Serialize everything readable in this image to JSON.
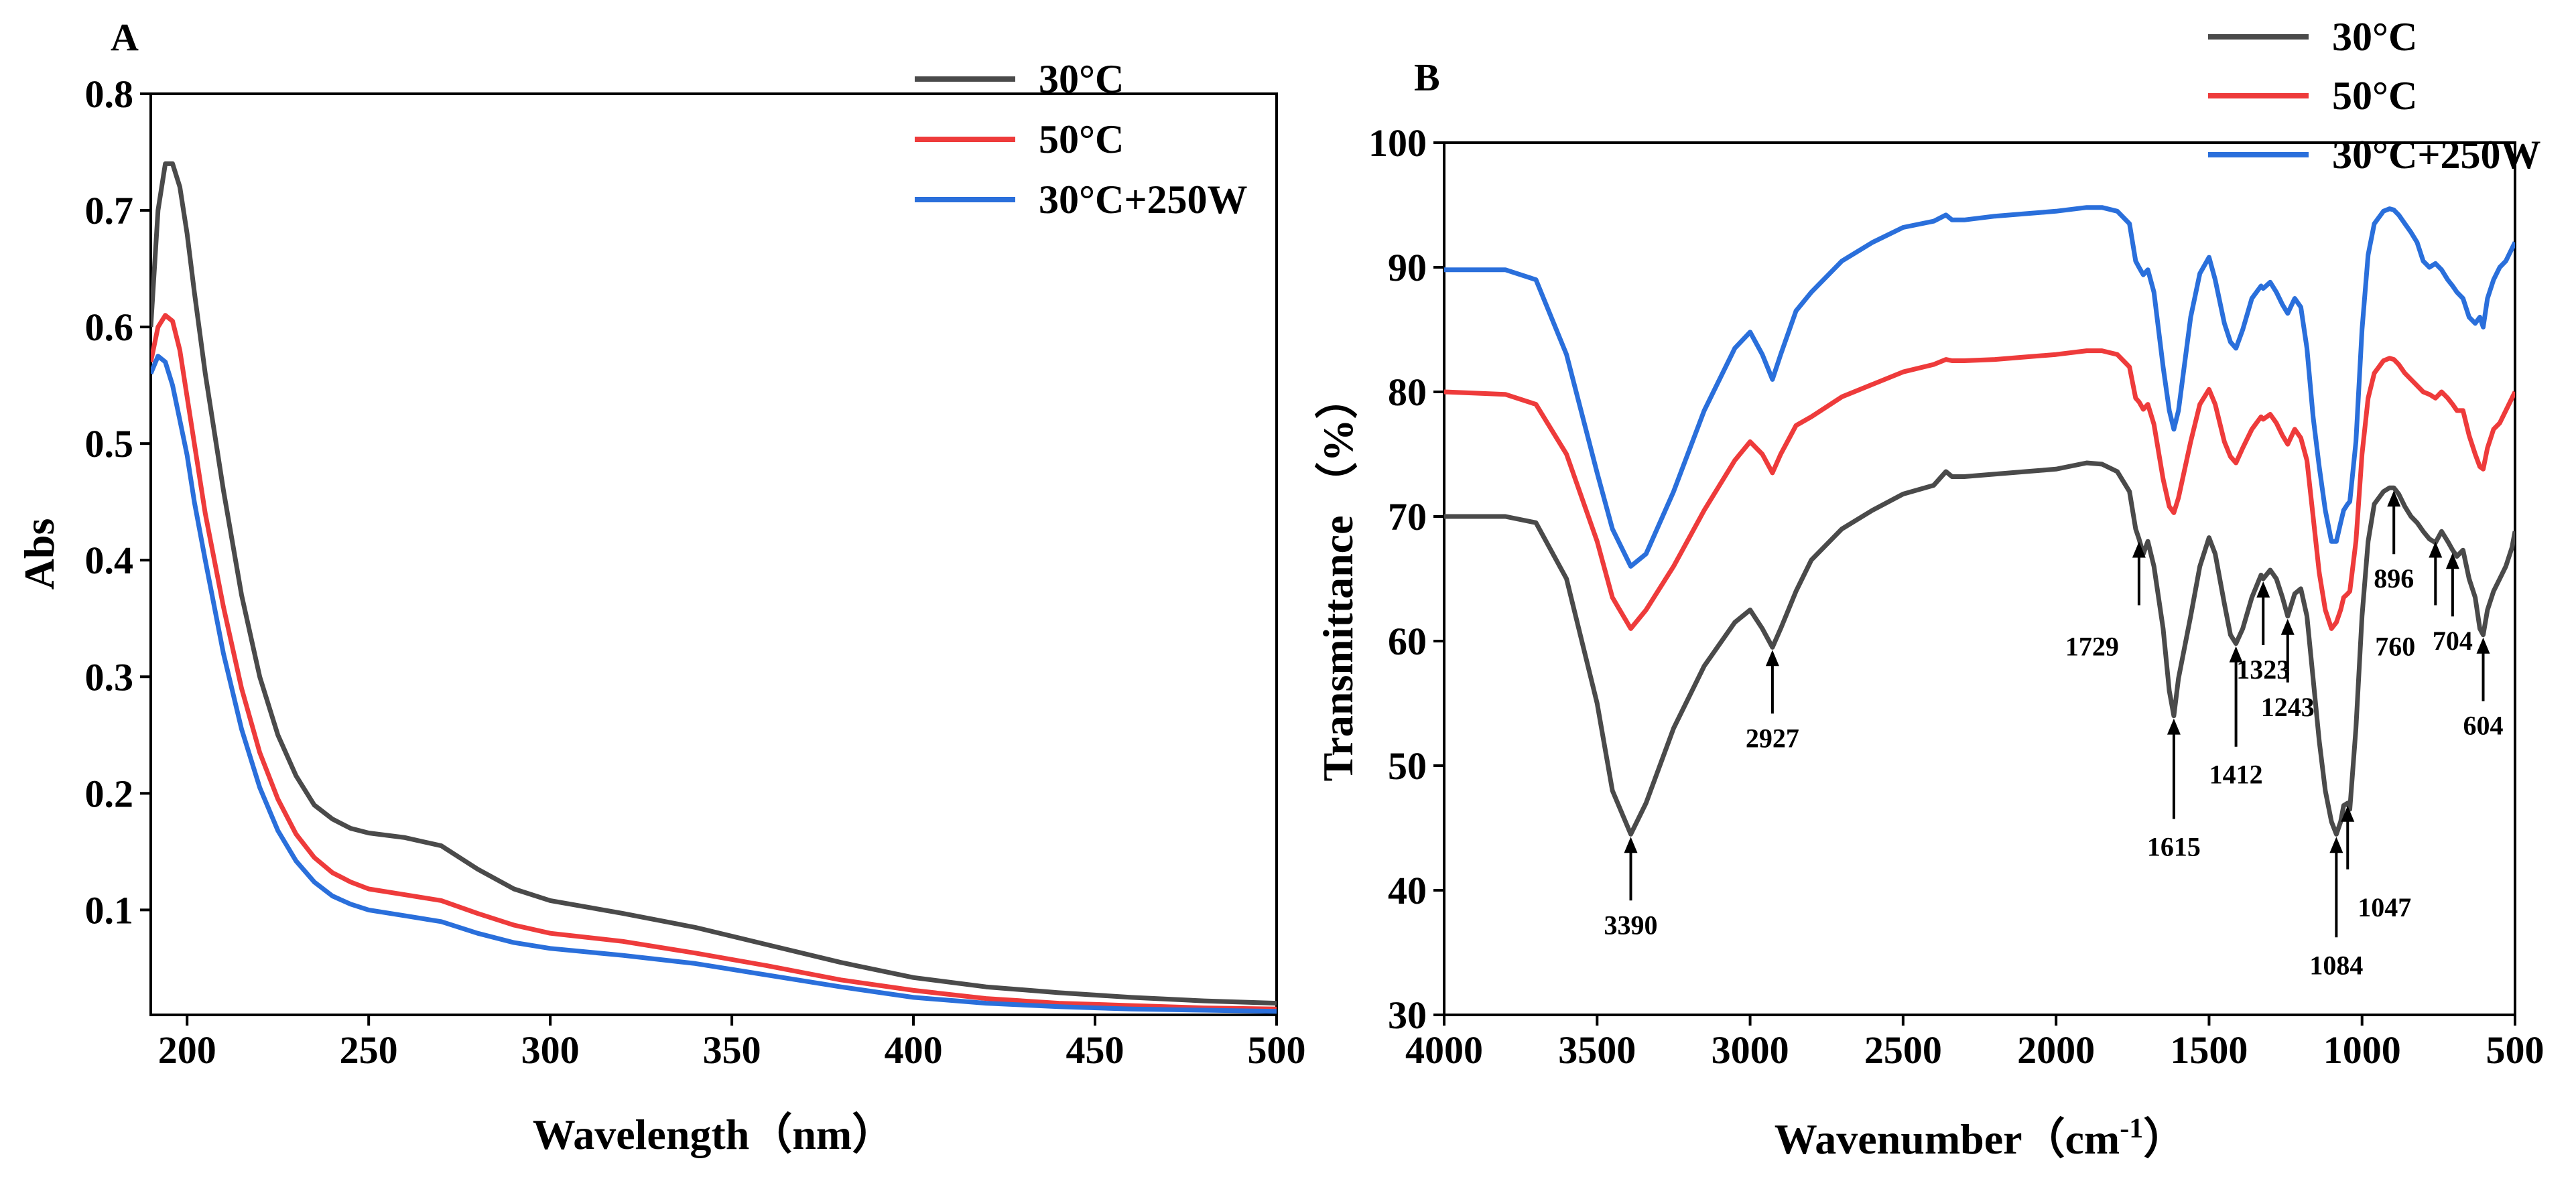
{
  "colors": {
    "s30": "#4a4a4a",
    "s50": "#ee3b3b",
    "s30w": "#2a6fdb"
  },
  "chart_data": [
    {
      "panel": "A",
      "type": "line",
      "xlabel": "Wavelength（nm）",
      "ylabel": "Abs",
      "xlim": [
        190,
        500
      ],
      "ylim": [
        0.01,
        0.8
      ],
      "xticks": [
        200,
        250,
        300,
        350,
        400,
        450,
        500
      ],
      "yticks": [
        0.1,
        0.2,
        0.3,
        0.4,
        0.5,
        0.6,
        0.7,
        0.8
      ],
      "legend_position": "top-right",
      "series": [
        {
          "name": "30°C",
          "color": "#4a4a4a",
          "x": [
            190,
            192,
            194,
            196,
            198,
            200,
            202,
            205,
            210,
            215,
            220,
            225,
            230,
            235,
            240,
            245,
            250,
            260,
            270,
            280,
            290,
            300,
            320,
            340,
            360,
            380,
            400,
            420,
            440,
            460,
            480,
            500
          ],
          "y": [
            0.6,
            0.7,
            0.74,
            0.74,
            0.72,
            0.68,
            0.63,
            0.56,
            0.46,
            0.37,
            0.3,
            0.25,
            0.215,
            0.19,
            0.178,
            0.17,
            0.166,
            0.162,
            0.155,
            0.135,
            0.118,
            0.108,
            0.097,
            0.085,
            0.07,
            0.055,
            0.042,
            0.034,
            0.029,
            0.025,
            0.022,
            0.02
          ]
        },
        {
          "name": "50°C",
          "color": "#ee3b3b",
          "x": [
            190,
            192,
            194,
            196,
            198,
            200,
            202,
            205,
            210,
            215,
            220,
            225,
            230,
            235,
            240,
            245,
            250,
            260,
            270,
            280,
            290,
            300,
            320,
            340,
            360,
            380,
            400,
            420,
            440,
            460,
            480,
            500
          ],
          "y": [
            0.57,
            0.6,
            0.61,
            0.605,
            0.58,
            0.54,
            0.5,
            0.44,
            0.36,
            0.29,
            0.235,
            0.195,
            0.165,
            0.145,
            0.132,
            0.124,
            0.118,
            0.113,
            0.108,
            0.097,
            0.087,
            0.08,
            0.073,
            0.063,
            0.052,
            0.04,
            0.031,
            0.024,
            0.02,
            0.018,
            0.016,
            0.015
          ]
        },
        {
          "name": "30°C+250W",
          "color": "#2a6fdb",
          "x": [
            190,
            192,
            194,
            196,
            198,
            200,
            202,
            205,
            210,
            215,
            220,
            225,
            230,
            235,
            240,
            245,
            250,
            260,
            270,
            280,
            290,
            300,
            320,
            340,
            360,
            380,
            400,
            420,
            440,
            460,
            480,
            500
          ],
          "y": [
            0.56,
            0.575,
            0.57,
            0.55,
            0.52,
            0.49,
            0.45,
            0.4,
            0.32,
            0.255,
            0.205,
            0.168,
            0.142,
            0.124,
            0.112,
            0.105,
            0.1,
            0.095,
            0.09,
            0.08,
            0.072,
            0.067,
            0.061,
            0.054,
            0.044,
            0.034,
            0.025,
            0.02,
            0.017,
            0.015,
            0.014,
            0.013
          ]
        }
      ]
    },
    {
      "panel": "B",
      "type": "line",
      "xlabel": "Wavenumber（cm",
      "xlabel_sup": "-1",
      "xlabel_end": "）",
      "ylabel": "Transmittance （%）",
      "xlim": [
        4000,
        500
      ],
      "ylim": [
        30,
        100
      ],
      "xticks": [
        4000,
        3500,
        3000,
        2500,
        2000,
        1500,
        1000,
        500
      ],
      "yticks": [
        30,
        40,
        50,
        60,
        70,
        80,
        90,
        100
      ],
      "legend_position": "top-right",
      "series": [
        {
          "name": "30°C",
          "color": "#4a4a4a",
          "x": [
            4000,
            3800,
            3700,
            3600,
            3500,
            3450,
            3390,
            3340,
            3250,
            3150,
            3050,
            3000,
            2960,
            2927,
            2900,
            2850,
            2800,
            2700,
            2600,
            2500,
            2400,
            2360,
            2340,
            2300,
            2200,
            2100,
            2000,
            1900,
            1850,
            1800,
            1760,
            1740,
            1729,
            1715,
            1700,
            1680,
            1650,
            1630,
            1615,
            1600,
            1560,
            1530,
            1500,
            1480,
            1450,
            1430,
            1412,
            1390,
            1360,
            1330,
            1323,
            1300,
            1280,
            1260,
            1243,
            1220,
            1200,
            1180,
            1160,
            1140,
            1120,
            1100,
            1084,
            1070,
            1060,
            1047,
            1040,
            1020,
            1000,
            980,
            960,
            930,
            910,
            896,
            880,
            860,
            840,
            820,
            800,
            780,
            760,
            740,
            720,
            704,
            690,
            670,
            650,
            630,
            615,
            604,
            590,
            570,
            550,
            530,
            510,
            500
          ],
          "y": [
            70,
            70,
            69.5,
            65,
            55,
            48,
            44.5,
            47,
            53,
            58,
            61.5,
            62.5,
            61,
            59.5,
            61,
            64,
            66.5,
            69,
            70.5,
            71.8,
            72.5,
            73.6,
            73.2,
            73.2,
            73.4,
            73.6,
            73.8,
            74.3,
            74.2,
            73.6,
            72,
            69,
            68.2,
            67,
            68,
            66,
            61,
            56,
            54,
            57,
            62,
            66,
            68.3,
            67,
            63,
            60.5,
            59.8,
            61,
            63.5,
            65.3,
            65,
            65.7,
            65,
            63.5,
            62,
            63.8,
            64.2,
            62,
            57,
            52,
            48,
            45.5,
            44.5,
            45.5,
            46.8,
            47,
            46.5,
            53,
            62,
            68,
            71,
            72,
            72.3,
            72.3,
            71.8,
            70.8,
            70,
            69.5,
            68.8,
            68.2,
            67.9,
            68.8,
            68,
            67.3,
            66.8,
            67.3,
            65,
            63.5,
            61,
            60.5,
            62.5,
            64,
            65,
            66,
            67.5,
            68.8
          ]
        },
        {
          "name": "50°C",
          "color": "#ee3b3b",
          "x": [
            4000,
            3800,
            3700,
            3600,
            3500,
            3450,
            3390,
            3340,
            3250,
            3150,
            3050,
            3000,
            2960,
            2927,
            2900,
            2850,
            2800,
            2700,
            2600,
            2500,
            2400,
            2360,
            2340,
            2300,
            2200,
            2100,
            2000,
            1900,
            1850,
            1800,
            1760,
            1740,
            1729,
            1715,
            1700,
            1680,
            1650,
            1630,
            1615,
            1600,
            1560,
            1530,
            1500,
            1480,
            1450,
            1430,
            1412,
            1390,
            1360,
            1330,
            1323,
            1300,
            1280,
            1260,
            1243,
            1220,
            1200,
            1180,
            1160,
            1140,
            1120,
            1100,
            1084,
            1070,
            1060,
            1047,
            1040,
            1020,
            1000,
            980,
            960,
            930,
            910,
            896,
            880,
            860,
            840,
            820,
            800,
            780,
            760,
            740,
            720,
            704,
            690,
            670,
            650,
            630,
            615,
            604,
            590,
            570,
            550,
            530,
            510,
            500
          ],
          "y": [
            80,
            79.8,
            79,
            75,
            68,
            63.5,
            61,
            62.5,
            66,
            70.5,
            74.5,
            76,
            75,
            73.5,
            75,
            77.3,
            78,
            79.6,
            80.6,
            81.6,
            82.2,
            82.6,
            82.5,
            82.5,
            82.6,
            82.8,
            83,
            83.3,
            83.3,
            83,
            82,
            79.5,
            79.2,
            78.6,
            79,
            77.4,
            73,
            70.8,
            70.3,
            71.5,
            76,
            79,
            80.2,
            79,
            76,
            74.8,
            74.3,
            75.5,
            77,
            78,
            77.8,
            78.2,
            77.5,
            76.5,
            75.8,
            77,
            76.3,
            74.5,
            70,
            65.5,
            62.5,
            61,
            61.5,
            62.5,
            63.5,
            63.8,
            64,
            68,
            75,
            79.5,
            81.5,
            82.5,
            82.7,
            82.6,
            82.2,
            81.5,
            81,
            80.5,
            80,
            79.8,
            79.5,
            80,
            79.5,
            79,
            78.5,
            78.5,
            76.5,
            75,
            74,
            73.8,
            75.5,
            77,
            77.5,
            78.5,
            79.5,
            80
          ]
        },
        {
          "name": "30°C+250W",
          "color": "#2a6fdb",
          "x": [
            4000,
            3800,
            3700,
            3600,
            3500,
            3450,
            3390,
            3340,
            3250,
            3150,
            3050,
            3000,
            2960,
            2927,
            2900,
            2850,
            2800,
            2700,
            2600,
            2500,
            2400,
            2360,
            2340,
            2300,
            2200,
            2100,
            2000,
            1900,
            1850,
            1800,
            1760,
            1740,
            1729,
            1715,
            1700,
            1680,
            1650,
            1630,
            1615,
            1600,
            1560,
            1530,
            1500,
            1480,
            1450,
            1430,
            1412,
            1390,
            1360,
            1330,
            1323,
            1300,
            1280,
            1260,
            1243,
            1220,
            1200,
            1180,
            1160,
            1140,
            1120,
            1100,
            1084,
            1070,
            1060,
            1047,
            1040,
            1020,
            1000,
            980,
            960,
            930,
            910,
            896,
            880,
            860,
            840,
            820,
            800,
            780,
            760,
            740,
            720,
            704,
            690,
            670,
            650,
            630,
            615,
            604,
            590,
            570,
            550,
            530,
            510,
            500
          ],
          "y": [
            89.8,
            89.8,
            89,
            83,
            73.5,
            69,
            66,
            67,
            72,
            78.5,
            83.5,
            84.8,
            83,
            81,
            83,
            86.5,
            88,
            90.5,
            92,
            93.2,
            93.7,
            94.2,
            93.8,
            93.8,
            94.1,
            94.3,
            94.5,
            94.8,
            94.8,
            94.5,
            93.5,
            90.5,
            90,
            89.4,
            89.8,
            88,
            82,
            78.5,
            77,
            78.5,
            86,
            89.5,
            90.8,
            89,
            85.5,
            84,
            83.5,
            85,
            87.5,
            88.5,
            88.3,
            88.8,
            88,
            87,
            86.3,
            87.5,
            86.8,
            83.5,
            78,
            74,
            70.5,
            68,
            68,
            69.5,
            70.5,
            71,
            71.2,
            76,
            85,
            91,
            93.5,
            94.5,
            94.7,
            94.6,
            94.2,
            93.5,
            92.8,
            92,
            90.5,
            90,
            90.3,
            89.8,
            89,
            88.5,
            88,
            87.5,
            86,
            85.5,
            86,
            85.2,
            87.5,
            89,
            90,
            90.5,
            91.5,
            92
          ]
        }
      ],
      "annotations": [
        {
          "label": "3390",
          "x": 3390,
          "y_tip": 44.5,
          "label_side": "below"
        },
        {
          "label": "2927",
          "x": 2927,
          "y_tip": 59.5,
          "label_side": "below"
        },
        {
          "label": "1729",
          "x": 1729,
          "y_tip": 68.2,
          "label_side": "below-left"
        },
        {
          "label": "1615",
          "x": 1615,
          "y_tip": 54,
          "label_side": "below-far"
        },
        {
          "label": "1412",
          "x": 1412,
          "y_tip": 59.8,
          "label_side": "below-far"
        },
        {
          "label": "1323",
          "x": 1323,
          "y_tip": 65,
          "label_side": "below"
        },
        {
          "label": "1243",
          "x": 1243,
          "y_tip": 62,
          "label_side": "below"
        },
        {
          "label": "1084",
          "x": 1084,
          "y_tip": 44.5,
          "label_side": "below-far"
        },
        {
          "label": "1047",
          "x": 1047,
          "y_tip": 47,
          "label_side": "below-right"
        },
        {
          "label": "896",
          "x": 896,
          "y_tip": 72.3,
          "label_side": "below"
        },
        {
          "label": "760",
          "x": 760,
          "y_tip": 68.2,
          "label_side": "below-left"
        },
        {
          "label": "704",
          "x": 704,
          "y_tip": 67.3,
          "label_side": "below"
        },
        {
          "label": "604",
          "x": 604,
          "y_tip": 60.5,
          "label_side": "below"
        }
      ]
    }
  ]
}
